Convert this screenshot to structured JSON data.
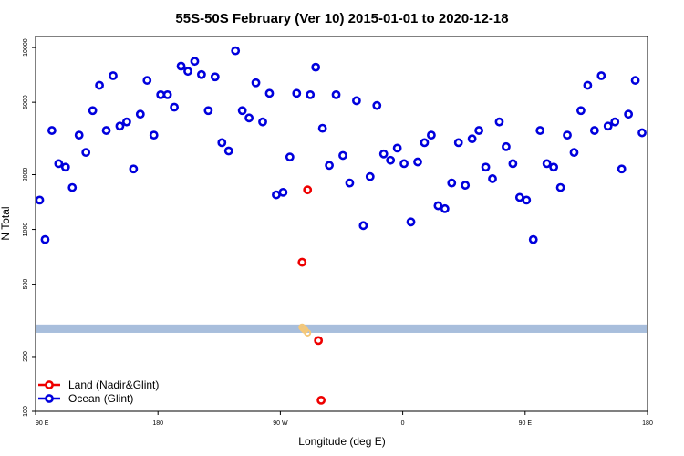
{
  "chart_data": {
    "type": "scatter",
    "title": "55S-50S February (Ver 10)   2015-01-01 to 2020-12-18",
    "xlabel": "Longitude (deg E)",
    "ylabel": "N Total",
    "y_scale": "log",
    "ylim": [
      100,
      11500
    ],
    "xlim": [
      90,
      540
    ],
    "x_ticks": [
      {
        "value": 90,
        "label": "90 E"
      },
      {
        "value": 180,
        "label": "180"
      },
      {
        "value": 270,
        "label": "90 W"
      },
      {
        "value": 360,
        "label": "0"
      },
      {
        "value": 450,
        "label": "90 E"
      },
      {
        "value": 540,
        "label": "180"
      }
    ],
    "y_ticks": [
      {
        "value": 100,
        "label": "100"
      },
      {
        "value": 200,
        "label": "200"
      },
      {
        "value": 500,
        "label": "500"
      },
      {
        "value": 1000,
        "label": "1000"
      },
      {
        "value": 2000,
        "label": "2000"
      },
      {
        "value": 5000,
        "label": "5000"
      },
      {
        "value": 10000,
        "label": "10000"
      }
    ],
    "band": {
      "y_range": [
        270,
        300
      ],
      "color": "#a8bedc"
    },
    "faint_points_color": "#f4c87a",
    "faint_points": [
      {
        "x": 286,
        "y": 290
      },
      {
        "x": 287,
        "y": 285
      },
      {
        "x": 288,
        "y": 280
      },
      {
        "x": 290,
        "y": 270
      }
    ],
    "legend": {
      "position": "bottom-left",
      "entries": [
        {
          "label": "Land (Nadir&Glint)",
          "color": "#ee0000"
        },
        {
          "label": "Ocean (Glint)",
          "color": "#0000dd"
        }
      ]
    },
    "series": [
      {
        "name": "Land (Nadir&Glint)",
        "color": "#ee0000",
        "points": [
          {
            "x": 290,
            "y": 1650
          },
          {
            "x": 286,
            "y": 660
          },
          {
            "x": 298,
            "y": 245
          },
          {
            "x": 300,
            "y": 115
          }
        ]
      },
      {
        "name": "Ocean (Glint)",
        "color": "#0000dd",
        "points": [
          {
            "x": 93,
            "y": 1450
          },
          {
            "x": 97,
            "y": 880
          },
          {
            "x": 102,
            "y": 3500
          },
          {
            "x": 107,
            "y": 2300
          },
          {
            "x": 112,
            "y": 2200
          },
          {
            "x": 117,
            "y": 1700
          },
          {
            "x": 122,
            "y": 3300
          },
          {
            "x": 127,
            "y": 2650
          },
          {
            "x": 132,
            "y": 4500
          },
          {
            "x": 137,
            "y": 6200
          },
          {
            "x": 142,
            "y": 3500
          },
          {
            "x": 147,
            "y": 7000
          },
          {
            "x": 152,
            "y": 3700
          },
          {
            "x": 157,
            "y": 3900
          },
          {
            "x": 162,
            "y": 2150
          },
          {
            "x": 167,
            "y": 4300
          },
          {
            "x": 172,
            "y": 6600
          },
          {
            "x": 177,
            "y": 3300
          },
          {
            "x": 182,
            "y": 5500
          },
          {
            "x": 187,
            "y": 5500
          },
          {
            "x": 192,
            "y": 4700
          },
          {
            "x": 197,
            "y": 7900
          },
          {
            "x": 202,
            "y": 7400
          },
          {
            "x": 207,
            "y": 8400
          },
          {
            "x": 212,
            "y": 7100
          },
          {
            "x": 217,
            "y": 4500
          },
          {
            "x": 222,
            "y": 6900
          },
          {
            "x": 227,
            "y": 3000
          },
          {
            "x": 232,
            "y": 2700
          },
          {
            "x": 237,
            "y": 9600
          },
          {
            "x": 242,
            "y": 4500
          },
          {
            "x": 247,
            "y": 4100
          },
          {
            "x": 252,
            "y": 6400
          },
          {
            "x": 257,
            "y": 3900
          },
          {
            "x": 262,
            "y": 5600
          },
          {
            "x": 267,
            "y": 1550
          },
          {
            "x": 272,
            "y": 1600
          },
          {
            "x": 277,
            "y": 2500
          },
          {
            "x": 282,
            "y": 5600
          },
          {
            "x": 292,
            "y": 5500
          },
          {
            "x": 296,
            "y": 7800
          },
          {
            "x": 301,
            "y": 3600
          },
          {
            "x": 306,
            "y": 2250
          },
          {
            "x": 311,
            "y": 5500
          },
          {
            "x": 316,
            "y": 2550
          },
          {
            "x": 321,
            "y": 1800
          },
          {
            "x": 326,
            "y": 5100
          },
          {
            "x": 331,
            "y": 1050
          },
          {
            "x": 336,
            "y": 1950
          },
          {
            "x": 341,
            "y": 4800
          },
          {
            "x": 346,
            "y": 2600
          },
          {
            "x": 351,
            "y": 2400
          },
          {
            "x": 356,
            "y": 2800
          },
          {
            "x": 361,
            "y": 2300
          },
          {
            "x": 366,
            "y": 1100
          },
          {
            "x": 371,
            "y": 2350
          },
          {
            "x": 376,
            "y": 3000
          },
          {
            "x": 381,
            "y": 3300
          },
          {
            "x": 386,
            "y": 1350
          },
          {
            "x": 391,
            "y": 1300
          },
          {
            "x": 396,
            "y": 1800
          },
          {
            "x": 401,
            "y": 3000
          },
          {
            "x": 406,
            "y": 1750
          },
          {
            "x": 411,
            "y": 3150
          },
          {
            "x": 416,
            "y": 3500
          },
          {
            "x": 421,
            "y": 2200
          },
          {
            "x": 426,
            "y": 1900
          },
          {
            "x": 431,
            "y": 3900
          },
          {
            "x": 436,
            "y": 2850
          },
          {
            "x": 441,
            "y": 2300
          },
          {
            "x": 446,
            "y": 1500
          },
          {
            "x": 451,
            "y": 1450
          },
          {
            "x": 456,
            "y": 880
          },
          {
            "x": 461,
            "y": 3500
          },
          {
            "x": 466,
            "y": 2300
          },
          {
            "x": 471,
            "y": 2200
          },
          {
            "x": 476,
            "y": 1700
          },
          {
            "x": 481,
            "y": 3300
          },
          {
            "x": 486,
            "y": 2650
          },
          {
            "x": 491,
            "y": 4500
          },
          {
            "x": 496,
            "y": 6200
          },
          {
            "x": 501,
            "y": 3500
          },
          {
            "x": 506,
            "y": 7000
          },
          {
            "x": 511,
            "y": 3700
          },
          {
            "x": 516,
            "y": 3900
          },
          {
            "x": 521,
            "y": 2150
          },
          {
            "x": 526,
            "y": 4300
          },
          {
            "x": 531,
            "y": 6600
          },
          {
            "x": 536,
            "y": 3400
          }
        ]
      }
    ]
  }
}
